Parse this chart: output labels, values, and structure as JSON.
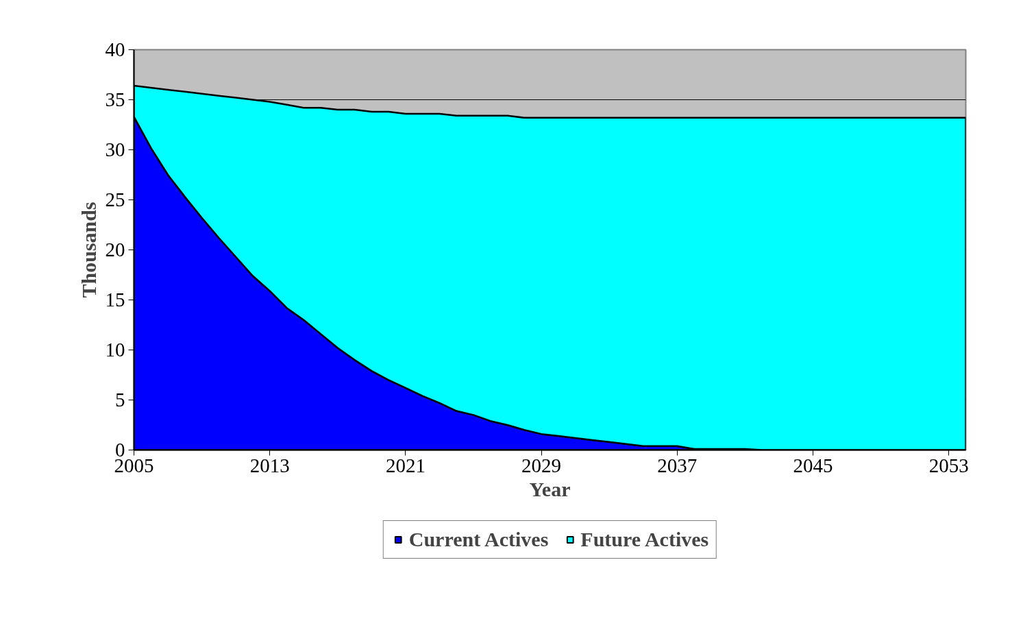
{
  "chart_data": {
    "type": "area",
    "stacked": true,
    "xlabel": "Year",
    "ylabel": "Thousands",
    "x": [
      2005,
      2006,
      2007,
      2008,
      2009,
      2010,
      2011,
      2012,
      2013,
      2014,
      2015,
      2016,
      2017,
      2018,
      2019,
      2020,
      2021,
      2022,
      2023,
      2024,
      2025,
      2026,
      2027,
      2028,
      2029,
      2030,
      2031,
      2032,
      2033,
      2034,
      2035,
      2036,
      2037,
      2038,
      2039,
      2040,
      2041,
      2042,
      2043,
      2044,
      2045,
      2046,
      2047,
      2048,
      2049,
      2050,
      2051,
      2052,
      2053,
      2054
    ],
    "series": [
      {
        "name": "Current Actives",
        "color": "#0000ff",
        "values": [
          33.3,
          30.2,
          27.5,
          25.3,
          23.2,
          21.2,
          19.3,
          17.4,
          15.9,
          14.2,
          13.0,
          11.6,
          10.2,
          9.0,
          7.9,
          7.0,
          6.2,
          5.4,
          4.7,
          3.9,
          3.5,
          2.9,
          2.5,
          2.0,
          1.6,
          1.4,
          1.2,
          1.0,
          0.8,
          0.6,
          0.4,
          0.4,
          0.4,
          0.1,
          0.1,
          0.1,
          0.1,
          0,
          0,
          0,
          0,
          0,
          0,
          0,
          0,
          0,
          0,
          0,
          0,
          0
        ]
      },
      {
        "name": "Future Actives",
        "color": "#00ffff",
        "values": [
          3.1,
          6.0,
          8.5,
          10.5,
          12.4,
          14.2,
          15.9,
          17.6,
          18.9,
          20.3,
          21.2,
          22.6,
          23.8,
          25.0,
          25.9,
          26.8,
          27.4,
          28.2,
          28.9,
          29.5,
          29.9,
          30.5,
          30.9,
          31.2,
          31.6,
          31.8,
          32.0,
          32.2,
          32.4,
          32.6,
          32.8,
          32.8,
          32.8,
          33.1,
          33.1,
          33.1,
          33.1,
          33.2,
          33.2,
          33.2,
          33.2,
          33.2,
          33.2,
          33.2,
          33.2,
          33.2,
          33.2,
          33.2,
          33.2,
          33.2
        ]
      }
    ],
    "xlim": [
      2005,
      2054
    ],
    "xticks": [
      2005,
      2013,
      2021,
      2029,
      2037,
      2045,
      2053
    ],
    "ylim": [
      0,
      40
    ],
    "yticks": [
      0,
      5,
      10,
      15,
      20,
      25,
      30,
      35,
      40
    ],
    "grid": "y",
    "legend": "bottom"
  }
}
